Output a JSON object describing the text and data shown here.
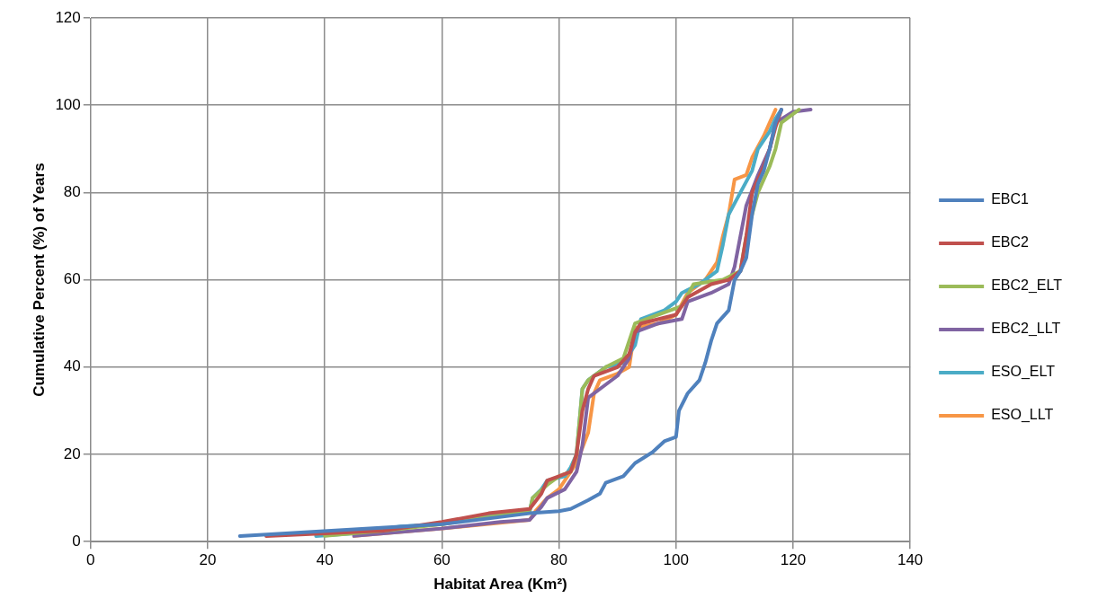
{
  "chart_data": {
    "type": "line",
    "xlabel": "Habitat Area (Km²)",
    "ylabel": "Cumulative Percent (%) of Years",
    "xlim": [
      0,
      140
    ],
    "xticks": [
      0,
      20,
      40,
      60,
      80,
      100,
      120,
      140
    ],
    "ylim": [
      0,
      120
    ],
    "yticks": [
      0,
      20,
      40,
      60,
      80,
      100,
      120
    ],
    "grid": true,
    "legend": "right",
    "marker": "none",
    "line_style": "solid",
    "series": [
      {
        "name": "EBC1",
        "color": "#4f81bd",
        "x": [
          25.5,
          60,
          75,
          80,
          82,
          85,
          87,
          88,
          91,
          93,
          96,
          98,
          100,
          100.5,
          102,
          104,
          105,
          106,
          107,
          109,
          110,
          111,
          112,
          113,
          114,
          115,
          116,
          117,
          118
        ],
        "values": [
          1.3,
          4,
          6.5,
          7,
          7.5,
          9.5,
          11,
          13.5,
          15,
          18,
          20.5,
          23,
          24,
          30,
          34,
          37,
          41,
          46,
          50,
          53,
          60,
          62,
          65,
          75,
          82,
          85,
          90,
          96,
          99
        ]
      },
      {
        "name": "EBC2",
        "color": "#c0504d",
        "x": [
          30,
          50,
          60,
          68,
          75,
          77,
          78,
          80,
          82,
          83,
          84,
          85,
          86,
          90,
          92,
          93,
          94,
          100,
          102,
          106,
          109,
          111,
          112,
          113,
          115,
          116,
          117,
          118
        ],
        "values": [
          1.3,
          2.5,
          4.5,
          6.5,
          7.5,
          11,
          14,
          15,
          16,
          20,
          30,
          35,
          38,
          40,
          43,
          48,
          50,
          52,
          56,
          59,
          60,
          62,
          70,
          80,
          86,
          90,
          95,
          99
        ]
      },
      {
        "name": "EBC2_ELT",
        "color": "#9bbb59",
        "x": [
          40,
          50,
          60,
          70,
          75,
          75.5,
          78,
          80,
          82,
          83,
          84,
          85,
          88,
          91,
          93,
          97,
          101,
          103,
          108,
          111,
          112,
          114,
          116,
          117,
          118,
          121
        ],
        "values": [
          1.3,
          2.5,
          4,
          6,
          7,
          10,
          13,
          15,
          16,
          20,
          35,
          37,
          40,
          42,
          50,
          52,
          54,
          59,
          60,
          62,
          70,
          80,
          86,
          90,
          96,
          99
        ]
      },
      {
        "name": "EBC2_LLT",
        "color": "#8064a2",
        "x": [
          45,
          60,
          70,
          75,
          77,
          78,
          81,
          83,
          84,
          85,
          88,
          90,
          92,
          93,
          97,
          101,
          102,
          106,
          109,
          110,
          111,
          112,
          114,
          116,
          117,
          120,
          123
        ],
        "values": [
          1.3,
          3,
          4.5,
          5,
          8,
          10,
          12,
          16,
          22,
          33,
          36,
          38,
          42,
          48,
          50,
          51,
          55,
          57,
          59,
          63,
          70,
          77,
          84,
          90,
          96,
          98.5,
          99
        ]
      },
      {
        "name": "ESO_ELT",
        "color": "#4bacc6",
        "x": [
          38.5,
          46,
          53,
          60,
          70,
          75,
          75.5,
          77,
          78,
          81,
          82,
          83,
          84,
          85,
          88,
          91,
          93,
          94,
          98,
          100,
          101,
          104,
          107,
          108,
          109,
          111,
          113,
          114,
          116,
          117,
          118
        ],
        "values": [
          1.3,
          2,
          3.5,
          4,
          6.3,
          7,
          10,
          12,
          14,
          15,
          17,
          20,
          35,
          37,
          40,
          41,
          45,
          51,
          53,
          55,
          57,
          59,
          62,
          68,
          75,
          80,
          85,
          90,
          94,
          97,
          99
        ]
      },
      {
        "name": "ESO_LLT",
        "color": "#f79646",
        "x": [
          45,
          60,
          75,
          76,
          78,
          80,
          82,
          83,
          85,
          86,
          87,
          90,
          92,
          93,
          97,
          100,
          102,
          105,
          107,
          108,
          109,
          110,
          112,
          113,
          115,
          116,
          117
        ],
        "values": [
          1.3,
          3,
          5,
          7,
          10,
          12,
          16,
          18,
          25,
          34,
          37,
          38.5,
          40,
          49,
          50,
          52,
          57,
          60,
          64,
          70,
          75,
          83,
          84,
          88,
          93,
          96,
          99
        ]
      }
    ]
  }
}
